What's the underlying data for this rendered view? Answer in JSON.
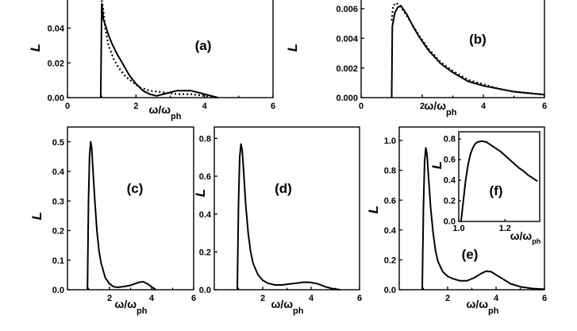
{
  "chart_data": [
    {
      "id": "a",
      "type": "line",
      "panel_label": "(a)",
      "xlabel": "ω/ω",
      "xlabel_sub": "ph",
      "ylabel": "L",
      "xlim": [
        0,
        6
      ],
      "ylim": [
        0,
        0.058
      ],
      "xticks": [
        0,
        2,
        4,
        6
      ],
      "xtick_labels": [
        "0",
        "2",
        "4",
        "6"
      ],
      "yticks": [
        0,
        0.02,
        0.04
      ],
      "ytick_labels": [
        "0.00",
        "0.02",
        "0.04"
      ],
      "grid": false,
      "series": [
        {
          "style": "solid",
          "x": [
            0.97,
            1.0,
            1.02,
            1.05,
            1.1,
            1.2,
            1.3,
            1.45,
            1.6,
            1.8,
            2.0,
            2.2,
            2.4,
            2.6,
            2.8,
            3.0,
            3.2,
            3.4,
            3.6,
            3.8,
            4.0,
            4.2,
            4.4
          ],
          "y": [
            0,
            0.054,
            0.051,
            0.045,
            0.042,
            0.036,
            0.031,
            0.025,
            0.02,
            0.013,
            0.008,
            0.004,
            0.002,
            0.001,
            0.002,
            0.003,
            0.004,
            0.004,
            0.004,
            0.003,
            0.002,
            0.001,
            0
          ]
        },
        {
          "style": "dotted",
          "x": [
            1.0,
            1.05,
            1.1,
            1.2,
            1.35,
            1.5,
            1.7,
            1.9,
            2.1,
            2.4,
            2.8,
            3.2,
            3.6,
            4.0,
            4.4
          ],
          "y": [
            0.056,
            0.05,
            0.04,
            0.03,
            0.022,
            0.017,
            0.012,
            0.009,
            0.006,
            0.004,
            0.003,
            0.002,
            0.002,
            0.001,
            0
          ]
        }
      ]
    },
    {
      "id": "b",
      "type": "line",
      "panel_label": "(b)",
      "xlabel": "ω/ω",
      "xlabel_sub": "ph",
      "ylabel": "L",
      "xlim": [
        0,
        6
      ],
      "ylim": [
        0,
        0.0068
      ],
      "xticks": [
        0,
        2,
        4,
        6
      ],
      "xtick_labels": [
        "0",
        "2",
        "4",
        "6"
      ],
      "yticks": [
        0,
        0.002,
        0.004,
        0.006
      ],
      "ytick_labels": [
        "0.000",
        "0.002",
        "0.004",
        "0.006"
      ],
      "grid": false,
      "series": [
        {
          "style": "solid",
          "x": [
            1.0,
            1.02,
            1.1,
            1.2,
            1.3,
            1.4,
            1.5,
            1.7,
            1.9,
            2.2,
            2.6,
            3.0,
            3.5,
            4.0,
            4.5,
            5.0,
            5.5,
            6.0
          ],
          "y": [
            0,
            0.0048,
            0.0057,
            0.0061,
            0.0062,
            0.0059,
            0.0056,
            0.0048,
            0.0041,
            0.0032,
            0.0023,
            0.0017,
            0.0011,
            0.0008,
            0.0006,
            0.0004,
            0.0003,
            0.0002
          ]
        },
        {
          "style": "dotted",
          "x": [
            1.0,
            1.05,
            1.15,
            1.3,
            1.5,
            1.8,
            2.2,
            2.6,
            3.0,
            3.5,
            4.0,
            4.5,
            5.0,
            5.5,
            6.0
          ],
          "y": [
            0.0052,
            0.0062,
            0.0064,
            0.0061,
            0.0055,
            0.0045,
            0.0033,
            0.0024,
            0.0018,
            0.0012,
            0.0009,
            0.0006,
            0.0004,
            0.0003,
            0.0002
          ]
        }
      ]
    },
    {
      "id": "c",
      "type": "line",
      "panel_label": "(c)",
      "xlabel": "ω/ω",
      "xlabel_sub": "ph",
      "ylabel": "L",
      "xlim": [
        0,
        6
      ],
      "ylim": [
        0,
        0.55
      ],
      "xticks": [
        2,
        4,
        6
      ],
      "xtick_labels": [
        "2",
        "4",
        "6"
      ],
      "yticks": [
        0,
        0.1,
        0.2,
        0.3,
        0.4,
        0.5
      ],
      "ytick_labels": [
        "0.0",
        "0.1",
        "0.2",
        "0.3",
        "0.4",
        "0.5"
      ],
      "grid": false,
      "series": [
        {
          "style": "solid",
          "x": [
            0.95,
            1.0,
            1.05,
            1.1,
            1.15,
            1.2,
            1.3,
            1.4,
            1.5,
            1.6,
            1.8,
            2.0,
            2.2,
            2.4,
            2.6,
            2.8,
            3.0,
            3.2,
            3.4,
            3.6,
            3.8,
            4.0,
            4.2
          ],
          "y": [
            0,
            0.3,
            0.45,
            0.5,
            0.48,
            0.42,
            0.3,
            0.2,
            0.13,
            0.09,
            0.04,
            0.02,
            0.01,
            0.008,
            0.01,
            0.012,
            0.015,
            0.02,
            0.025,
            0.027,
            0.02,
            0.01,
            0
          ]
        }
      ]
    },
    {
      "id": "d",
      "type": "line",
      "panel_label": "(d)",
      "xlabel": "ω/ω",
      "xlabel_sub": "ph",
      "ylabel": "L",
      "xlim": [
        0,
        6
      ],
      "ylim": [
        0,
        0.86
      ],
      "xticks": [
        2,
        4,
        6
      ],
      "xtick_labels": [
        "2",
        "4",
        "6"
      ],
      "yticks": [
        0,
        0.2,
        0.4,
        0.6,
        0.8
      ],
      "ytick_labels": [
        "0.0",
        "0.2",
        "0.4",
        "0.6",
        "0.8"
      ],
      "grid": false,
      "series": [
        {
          "style": "solid",
          "x": [
            0.95,
            1.0,
            1.05,
            1.1,
            1.15,
            1.2,
            1.3,
            1.4,
            1.5,
            1.6,
            1.8,
            2.0,
            2.2,
            2.5,
            2.8,
            3.1,
            3.4,
            3.7,
            4.0,
            4.3,
            4.6,
            4.9,
            5.2
          ],
          "y": [
            0,
            0.45,
            0.7,
            0.77,
            0.74,
            0.65,
            0.45,
            0.3,
            0.2,
            0.14,
            0.08,
            0.05,
            0.035,
            0.025,
            0.025,
            0.03,
            0.035,
            0.04,
            0.038,
            0.03,
            0.015,
            0.005,
            0
          ]
        }
      ]
    },
    {
      "id": "e",
      "type": "line",
      "panel_label": "(e)",
      "xlabel": "ω/ω",
      "xlabel_sub": "ph",
      "ylabel": "L",
      "xlim": [
        0,
        6
      ],
      "ylim": [
        0,
        1.09
      ],
      "xticks": [
        2,
        4,
        6
      ],
      "xtick_labels": [
        "2",
        "4",
        "6"
      ],
      "yticks": [
        0,
        0.2,
        0.4,
        0.6,
        0.8,
        1.0
      ],
      "ytick_labels": [
        "0.0",
        "0.2",
        "0.4",
        "0.6",
        "0.8",
        "1.0"
      ],
      "grid": false,
      "series": [
        {
          "style": "solid",
          "x": [
            0.95,
            1.0,
            1.05,
            1.1,
            1.15,
            1.2,
            1.3,
            1.4,
            1.5,
            1.6,
            1.8,
            2.0,
            2.2,
            2.5,
            2.8,
            3.1,
            3.4,
            3.6,
            3.8,
            4.0,
            4.3,
            4.6,
            5.0,
            5.5,
            6.0
          ],
          "y": [
            0,
            0.55,
            0.86,
            0.95,
            0.9,
            0.78,
            0.55,
            0.38,
            0.26,
            0.19,
            0.12,
            0.09,
            0.075,
            0.06,
            0.06,
            0.08,
            0.11,
            0.125,
            0.12,
            0.1,
            0.07,
            0.04,
            0.02,
            0.008,
            0.003
          ]
        }
      ]
    },
    {
      "id": "f",
      "type": "line",
      "panel_label": "(f)",
      "xlabel": "ω/ω",
      "xlabel_sub": "ph",
      "ylabel": "L",
      "xlim": [
        1.0,
        1.35
      ],
      "ylim": [
        0,
        0.87
      ],
      "xticks": [
        1.0,
        1.2
      ],
      "xtick_labels": [
        "1.0",
        "1.2"
      ],
      "yticks": [
        0,
        0.2,
        0.4,
        0.6,
        0.8
      ],
      "ytick_labels": [
        "0.0",
        "0.2",
        "0.4",
        "0.6",
        "0.8"
      ],
      "grid": false,
      "series": [
        {
          "style": "solid",
          "x": [
            1.01,
            1.02,
            1.03,
            1.04,
            1.05,
            1.06,
            1.07,
            1.08,
            1.1,
            1.12,
            1.14,
            1.16,
            1.18,
            1.2,
            1.22,
            1.24,
            1.26,
            1.28,
            1.3,
            1.32,
            1.34
          ],
          "y": [
            0.0,
            0.2,
            0.4,
            0.55,
            0.65,
            0.71,
            0.75,
            0.77,
            0.78,
            0.77,
            0.74,
            0.71,
            0.68,
            0.64,
            0.6,
            0.56,
            0.52,
            0.49,
            0.45,
            0.42,
            0.39
          ]
        }
      ]
    }
  ]
}
